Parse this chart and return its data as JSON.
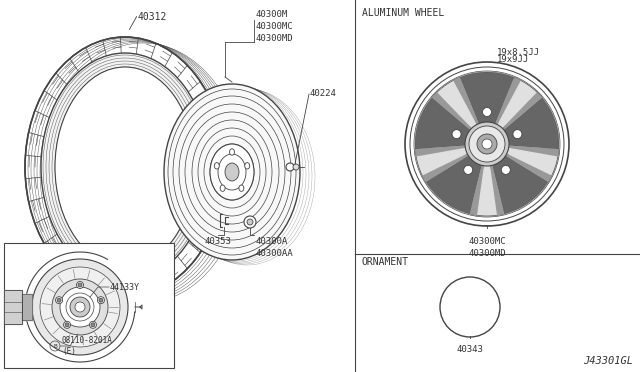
{
  "bg_color": "#ffffff",
  "line_color": "#444444",
  "text_color": "#333333",
  "fig_width": 6.4,
  "fig_height": 3.72,
  "labels": {
    "tire_part": "40312",
    "wheel_parts_top": "40300M\n40300MC\n40300MD",
    "valve_stem": "40224",
    "wheel_lug_parts": "40300A\n40300AA",
    "lug_nut": "40353",
    "brake_rotor": "44133Y",
    "bolt": "08110-8201A\n(E)",
    "section_aluminum": "ALUMINUM WHEEL",
    "wheel_size1": "19x8.5JJ",
    "wheel_size2": "19x9JJ",
    "alum_wheel_parts": "40300MC\n40300MD",
    "section_ornament": "ORNAMENT",
    "ornament_part": "40343",
    "diagram_code": "J43301GL"
  }
}
